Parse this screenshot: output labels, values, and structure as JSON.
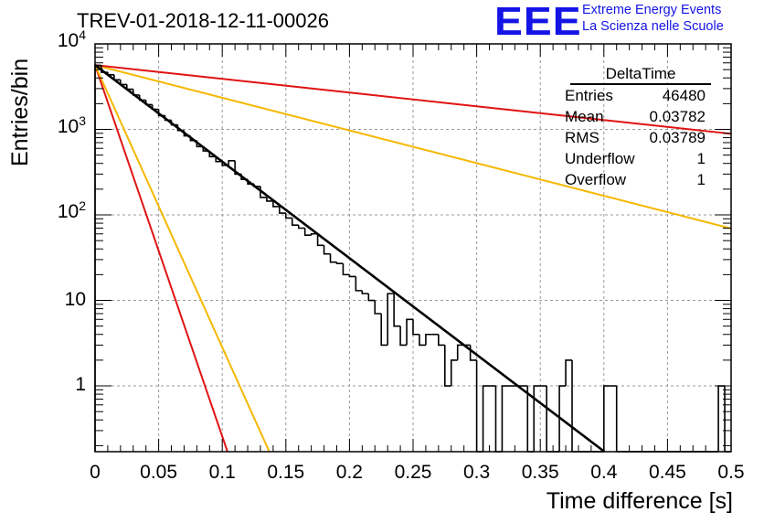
{
  "chart_data": {
    "type": "line",
    "title": "TREV-01-2018-12-11-00026",
    "xlabel": "Time difference [s]",
    "ylabel": "Entries/bin",
    "xlim": [
      0,
      0.5
    ],
    "ylim": [
      0.17,
      10000
    ],
    "y_scale": "log",
    "grid": true,
    "x_ticks": [
      "0",
      "0.05",
      "0.1",
      "0.15",
      "0.2",
      "0.25",
      "0.3",
      "0.35",
      "0.4",
      "0.45",
      "0.5"
    ],
    "y_ticks": [
      {
        "value": 1,
        "label": "1"
      },
      {
        "value": 10,
        "label": "10"
      },
      {
        "value": 100,
        "label": "10",
        "exp": "2"
      },
      {
        "value": 1000,
        "label": "10",
        "exp": "3"
      },
      {
        "value": 10000,
        "label": "10",
        "exp": "4"
      }
    ],
    "histogram": {
      "bin_width": 0.005,
      "counts": [
        5600,
        4650,
        4350,
        3800,
        3350,
        2950,
        2520,
        2200,
        1950,
        1720,
        1450,
        1280,
        1130,
        970,
        840,
        740,
        630,
        560,
        480,
        420,
        380,
        430,
        300,
        260,
        230,
        215,
        160,
        145,
        125,
        105,
        92,
        76,
        70,
        58,
        60,
        44,
        35,
        28,
        27,
        20,
        19,
        13,
        12,
        10,
        7,
        3,
        12,
        5,
        3,
        6,
        4,
        3,
        4,
        4,
        3,
        1,
        2,
        3,
        3,
        2,
        0,
        1,
        1,
        0,
        1,
        1,
        1,
        1,
        0,
        1,
        1,
        0,
        0,
        1,
        2,
        0,
        0,
        0,
        0,
        0,
        1,
        1,
        0,
        0,
        0,
        0,
        0,
        0,
        0,
        0,
        0,
        0,
        0,
        0,
        0,
        0,
        0,
        0,
        1,
        0
      ]
    },
    "fit": {
      "name": "fit",
      "color": "#000000",
      "amplitude": 5650,
      "slope_per_s": 26.0
    },
    "curves": [
      {
        "name": "red-steep",
        "color": "#e01414",
        "amplitude": 5650,
        "slope_per_s": 100.0
      },
      {
        "name": "orange-steep",
        "color": "#f5b800",
        "amplitude": 5650,
        "slope_per_s": 76.0
      },
      {
        "name": "orange-shallow",
        "color": "#f5b800",
        "amplitude": 5650,
        "slope_per_s": 8.8
      },
      {
        "name": "red-shallow",
        "color": "#e01414",
        "amplitude": 5650,
        "slope_per_s": 3.7
      }
    ]
  },
  "stats_box": {
    "title": "DeltaTime",
    "rows": [
      {
        "label": "Entries",
        "value": "46480"
      },
      {
        "label": "Mean",
        "value": "0.03782"
      },
      {
        "label": "RMS",
        "value": "0.03789"
      },
      {
        "label": "Underflow",
        "value": "1"
      },
      {
        "label": "Overflow",
        "value": "1"
      }
    ]
  },
  "logo": {
    "mark": "EEE",
    "line1": "Extreme Energy Events",
    "line2": "La Scienza nelle Scuole",
    "color": "#1414e6"
  }
}
